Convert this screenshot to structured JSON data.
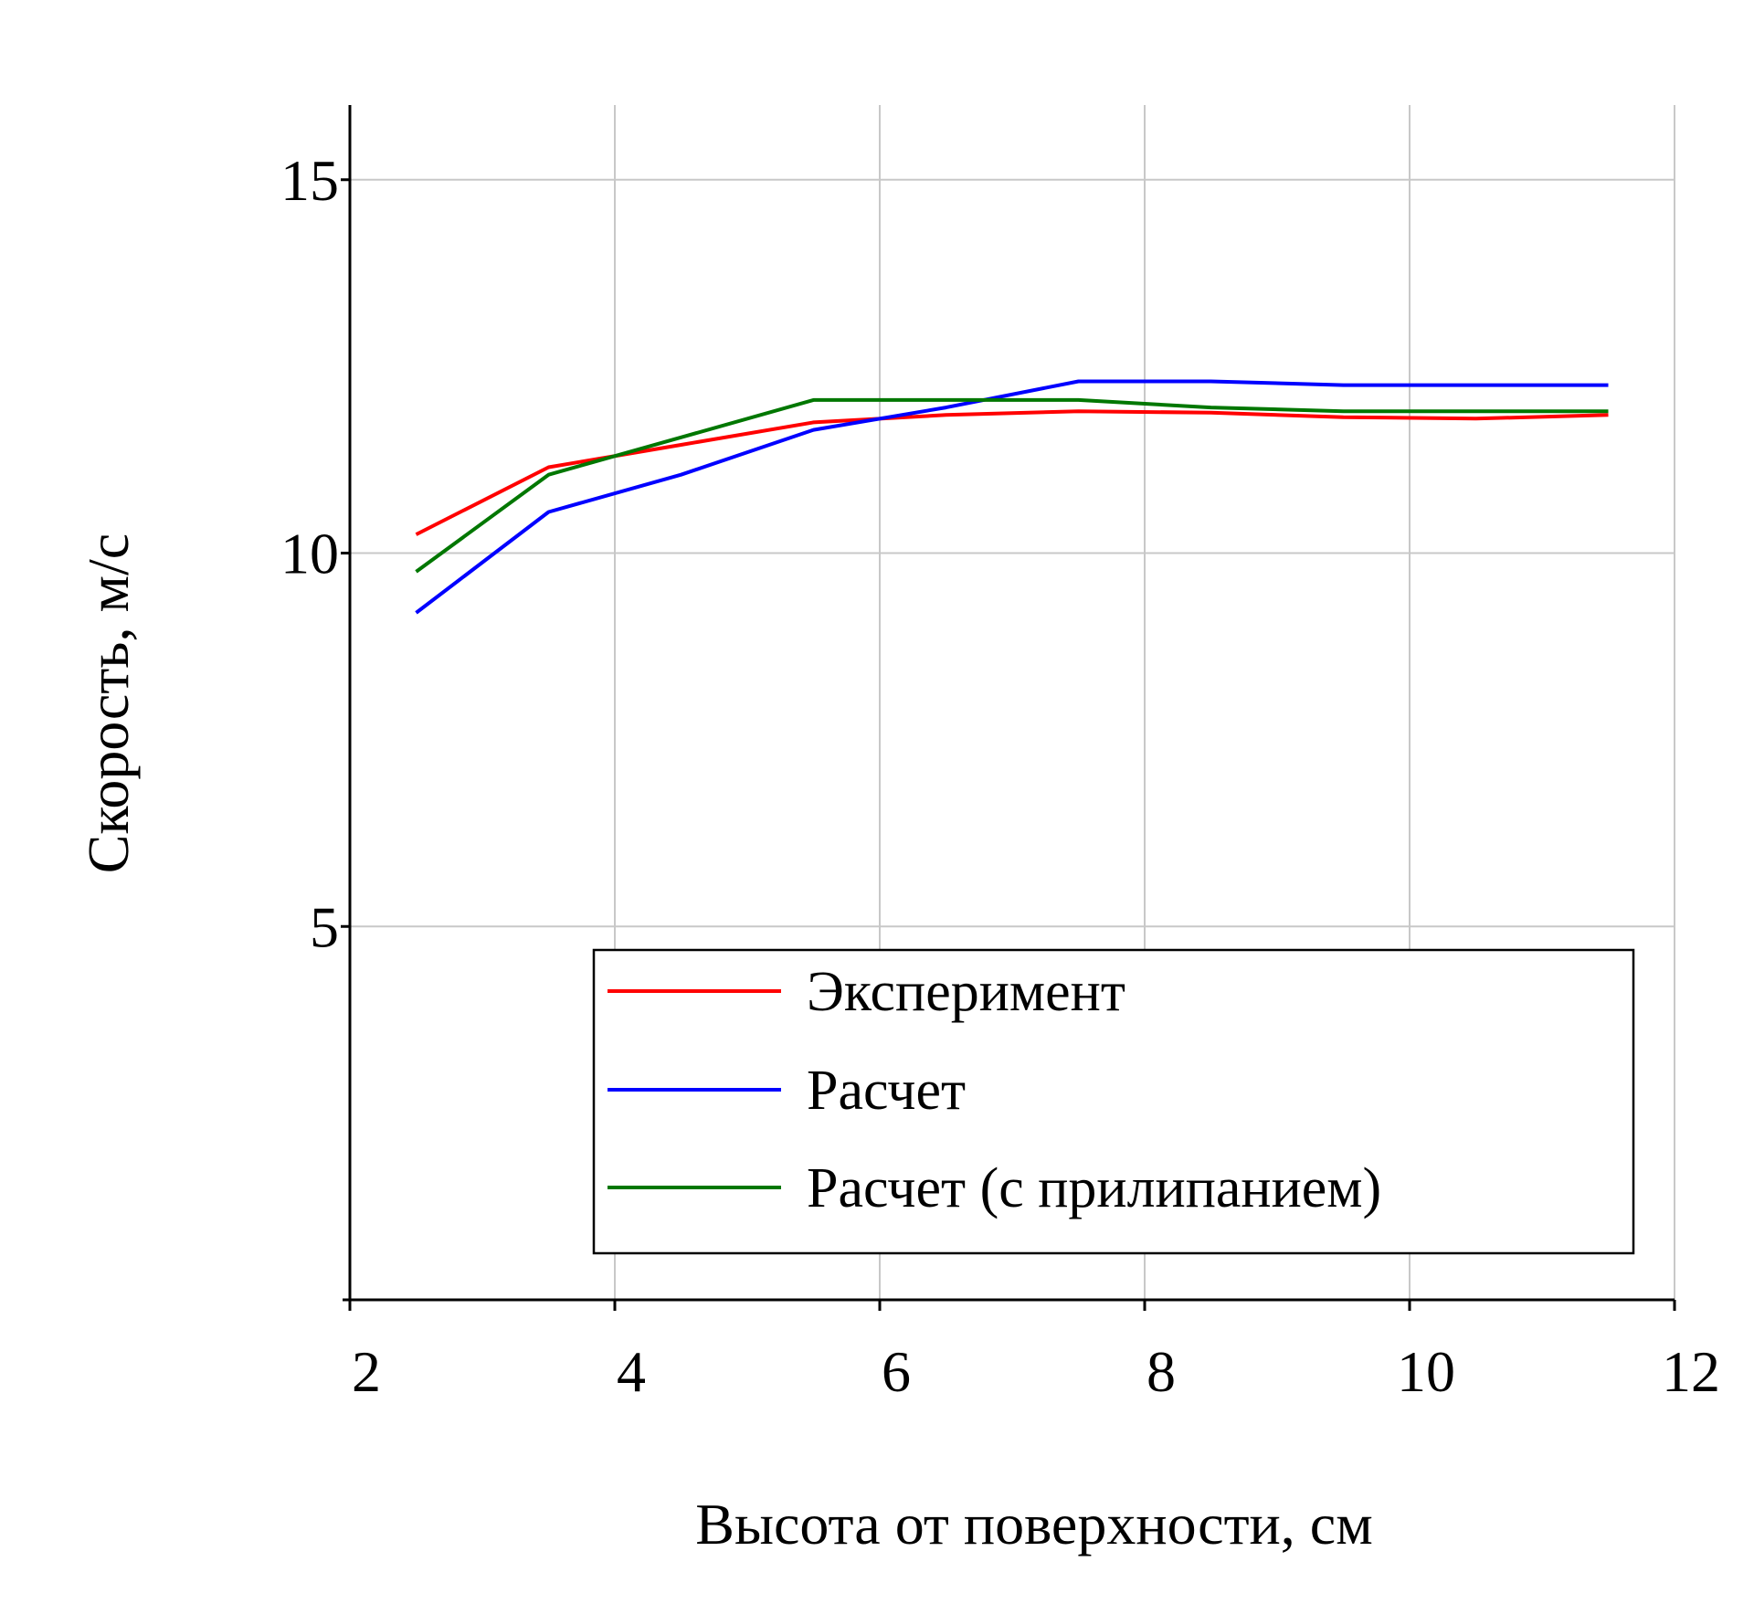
{
  "chart_data": {
    "type": "line",
    "xlabel": "Высота от поверхности, см",
    "ylabel": "Скорость, м/с",
    "xlim": [
      2,
      12
    ],
    "ylim": [
      0,
      16
    ],
    "xticks": [
      2,
      4,
      6,
      8,
      10,
      12
    ],
    "yticks": [
      5,
      10,
      15
    ],
    "x_tick_labels": [
      "2",
      "4",
      "6",
      "8",
      "10",
      "12"
    ],
    "y_tick_labels": [
      "5",
      "10",
      "15"
    ],
    "grid": true,
    "legend_position": "bottom-right",
    "series": [
      {
        "name": "Эксперимент",
        "color": "#ff0000",
        "x": [
          2.5,
          3.5,
          4.5,
          5.5,
          6.5,
          7.5,
          8.5,
          9.5,
          10.5,
          11.5
        ],
        "y": [
          10.25,
          11.15,
          11.45,
          11.75,
          11.85,
          11.9,
          11.88,
          11.82,
          11.8,
          11.85
        ]
      },
      {
        "name": "Расчет",
        "color": "#0000ff",
        "x": [
          2.5,
          3.5,
          4.5,
          5.5,
          6.5,
          7.5,
          8.5,
          9.5,
          10.5,
          11.5
        ],
        "y": [
          9.2,
          10.55,
          11.05,
          11.65,
          11.95,
          12.3,
          12.3,
          12.25,
          12.25,
          12.25
        ]
      },
      {
        "name": "Расчет (с прилипанием)",
        "color": "#007700",
        "x": [
          2.5,
          3.5,
          4.5,
          5.5,
          6.5,
          7.5,
          8.5,
          9.5,
          10.5,
          11.5
        ],
        "y": [
          9.75,
          11.05,
          11.55,
          12.05,
          12.05,
          12.05,
          11.95,
          11.9,
          11.9,
          11.9
        ]
      }
    ]
  }
}
